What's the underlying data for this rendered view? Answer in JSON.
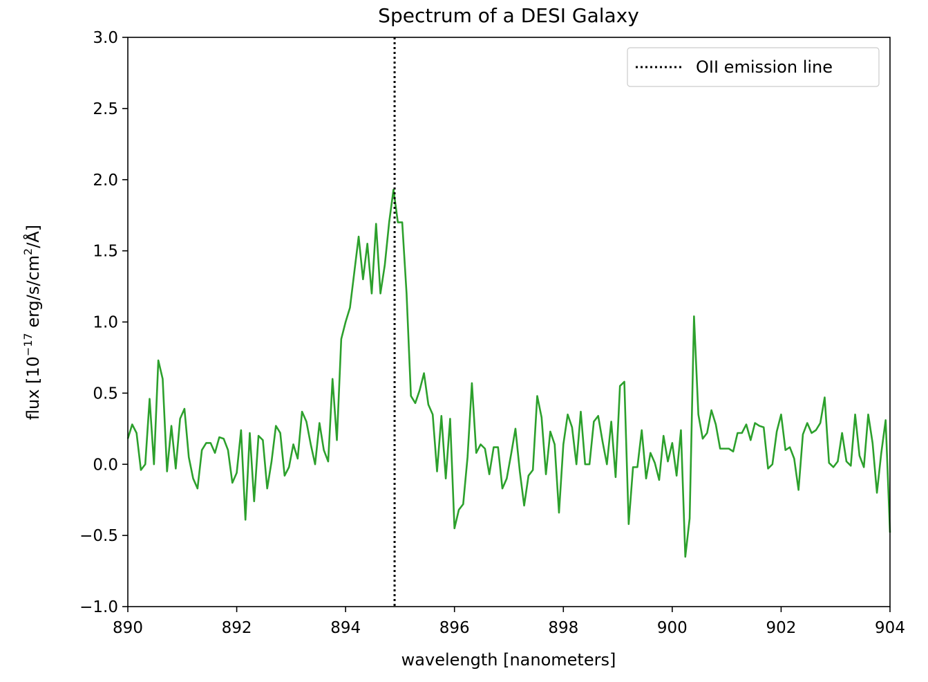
{
  "chart_data": {
    "type": "line",
    "title": "Spectrum of a DESI Galaxy",
    "xlabel": "wavelength [nanometers]",
    "ylabel_parts": [
      "flux [10",
      "−17",
      " erg/s/cm",
      "2",
      "/Å]"
    ],
    "xlim": [
      890,
      904
    ],
    "ylim": [
      -1.0,
      3.0
    ],
    "xticks": [
      890,
      892,
      894,
      896,
      898,
      900,
      902,
      904
    ],
    "xtick_labels": [
      "890",
      "892",
      "894",
      "896",
      "898",
      "900",
      "902",
      "904"
    ],
    "yticks": [
      -1.0,
      -0.5,
      0.0,
      0.5,
      1.0,
      1.5,
      2.0,
      2.5,
      3.0
    ],
    "ytick_labels": [
      "−1.0",
      "−0.5",
      "0.0",
      "0.5",
      "1.0",
      "1.5",
      "2.0",
      "2.5",
      "3.0"
    ],
    "grid": false,
    "legend_position": "top-right",
    "series": [
      {
        "name": "",
        "color": "#2ca02c",
        "style": "solid",
        "x": [
          890.0,
          890.08,
          890.16,
          890.24,
          890.32,
          890.4,
          890.48,
          890.56,
          890.64,
          890.72,
          890.8,
          890.88,
          890.96,
          891.04,
          891.12,
          891.2,
          891.28,
          891.36,
          891.44,
          891.52,
          891.6,
          891.68,
          891.76,
          891.84,
          891.92,
          892.0,
          892.08,
          892.16,
          892.24,
          892.32,
          892.4,
          892.48,
          892.56,
          892.64,
          892.72,
          892.8,
          892.88,
          892.96,
          893.04,
          893.12,
          893.2,
          893.28,
          893.36,
          893.44,
          893.52,
          893.6,
          893.68,
          893.76,
          893.84,
          893.92,
          894.0,
          894.08,
          894.16,
          894.24,
          894.32,
          894.4,
          894.48,
          894.56,
          894.64,
          894.72,
          894.8,
          894.88,
          894.96,
          895.04,
          895.12,
          895.2,
          895.28,
          895.36,
          895.44,
          895.52,
          895.6,
          895.68,
          895.76,
          895.84,
          895.92,
          896.0,
          896.08,
          896.16,
          896.24,
          896.32,
          896.4,
          896.48,
          896.56,
          896.64,
          896.72,
          896.8,
          896.88,
          896.96,
          897.04,
          897.12,
          897.2,
          897.28,
          897.36,
          897.44,
          897.52,
          897.6,
          897.68,
          897.76,
          897.84,
          897.92,
          898.0,
          898.08,
          898.16,
          898.24,
          898.32,
          898.4,
          898.48,
          898.56,
          898.64,
          898.72,
          898.8,
          898.88,
          898.96,
          899.04,
          899.12,
          899.2,
          899.28,
          899.36,
          899.44,
          899.52,
          899.6,
          899.68,
          899.76,
          899.84,
          899.92,
          900.0,
          900.08,
          900.16,
          900.24,
          900.32,
          900.4,
          900.48,
          900.56,
          900.64,
          900.72,
          900.8,
          900.88,
          900.96,
          901.04,
          901.12,
          901.2,
          901.28,
          901.36,
          901.44,
          901.52,
          901.6,
          901.68,
          901.76,
          901.84,
          901.92,
          902.0,
          902.08,
          902.16,
          902.24,
          902.32,
          902.4,
          902.48,
          902.56,
          902.64,
          902.72,
          902.8,
          902.88,
          902.96,
          903.04,
          903.12,
          903.2,
          903.28,
          903.36,
          903.44,
          903.52,
          903.6,
          903.68,
          903.76,
          903.84,
          903.92,
          904.0
        ],
        "y": [
          0.18,
          0.28,
          0.22,
          -0.04,
          0.0,
          0.46,
          0.0,
          0.73,
          0.6,
          -0.05,
          0.27,
          -0.03,
          0.32,
          0.39,
          0.05,
          -0.1,
          -0.17,
          0.1,
          0.15,
          0.15,
          0.08,
          0.19,
          0.18,
          0.1,
          -0.13,
          -0.06,
          0.24,
          -0.39,
          0.22,
          -0.26,
          0.2,
          0.17,
          -0.17,
          0.02,
          0.27,
          0.22,
          -0.08,
          -0.02,
          0.14,
          0.04,
          0.37,
          0.3,
          0.14,
          0.0,
          0.29,
          0.1,
          0.02,
          0.6,
          0.17,
          0.88,
          1.0,
          1.1,
          1.35,
          1.6,
          1.3,
          1.55,
          1.2,
          1.69,
          1.2,
          1.4,
          1.7,
          1.93,
          1.7,
          1.7,
          1.2,
          0.48,
          0.43,
          0.52,
          0.64,
          0.42,
          0.35,
          -0.05,
          0.34,
          -0.1,
          0.32,
          -0.45,
          -0.32,
          -0.28,
          0.05,
          0.57,
          0.08,
          0.14,
          0.11,
          -0.07,
          0.12,
          0.12,
          -0.17,
          -0.1,
          0.07,
          0.25,
          -0.05,
          -0.29,
          -0.08,
          -0.04,
          0.48,
          0.33,
          -0.07,
          0.23,
          0.14,
          -0.34,
          0.14,
          0.35,
          0.26,
          0.0,
          0.37,
          0.0,
          0.0,
          0.3,
          0.34,
          0.16,
          0.0,
          0.3,
          -0.09,
          0.55,
          0.58,
          -0.42,
          -0.02,
          -0.02,
          0.24,
          -0.1,
          0.08,
          0.01,
          -0.11,
          0.2,
          0.02,
          0.15,
          -0.08,
          0.24,
          -0.65,
          -0.38,
          1.04,
          0.35,
          0.18,
          0.22,
          0.38,
          0.28,
          0.11,
          0.11,
          0.11,
          0.09,
          0.22,
          0.22,
          0.28,
          0.17,
          0.29,
          0.27,
          0.26,
          -0.03,
          0.0,
          0.23,
          0.35,
          0.1,
          0.12,
          0.04,
          -0.18,
          0.21,
          0.29,
          0.22,
          0.24,
          0.29,
          0.47,
          0.01,
          -0.02,
          0.02,
          0.22,
          0.02,
          -0.01,
          0.35,
          0.06,
          -0.02,
          0.35,
          0.15,
          -0.2,
          0.08,
          0.31,
          -0.48
        ]
      }
    ],
    "vline": {
      "x": 894.9,
      "label": "OII emission line",
      "style": "dotted",
      "color": "#000000"
    }
  }
}
